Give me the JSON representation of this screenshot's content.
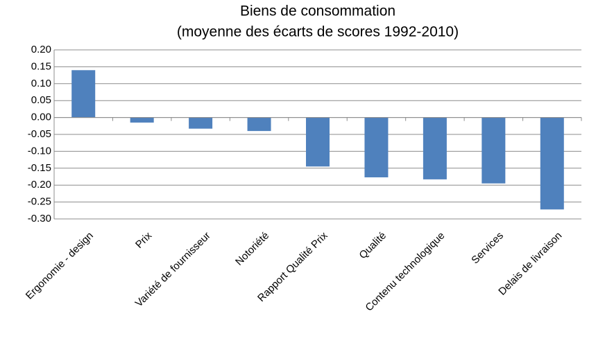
{
  "chart_data": {
    "type": "bar",
    "title": "Biens de consommation",
    "subtitle": "(moyenne des écarts de scores  1992-2010)",
    "categories": [
      "Ergonomie - design",
      "Prix",
      "Variété de fournisseur",
      "Notoriété",
      "Rapport Qualité Prix",
      "Qualité",
      "Contenu technologique",
      "Services",
      "Delais de livraison"
    ],
    "values": [
      0.14,
      -0.015,
      -0.033,
      -0.04,
      -0.145,
      -0.177,
      -0.183,
      -0.195,
      -0.272
    ],
    "color": "#4f81bd",
    "ylim": [
      -0.3,
      0.2
    ],
    "yticks": [
      {
        "value": 0.2,
        "label": "0.20"
      },
      {
        "value": 0.15,
        "label": "0.15"
      },
      {
        "value": 0.1,
        "label": "0.10"
      },
      {
        "value": 0.05,
        "label": "0.05"
      },
      {
        "value": 0,
        "label": "0.00"
      },
      {
        "value": -0.05,
        "label": "-0.05"
      },
      {
        "value": -0.1,
        "label": "-0.10"
      },
      {
        "value": -0.15,
        "label": "-0.15"
      },
      {
        "value": -0.2,
        "label": "-0.20"
      },
      {
        "value": -0.25,
        "label": "-0.25"
      },
      {
        "value": -0.3,
        "label": "-0.30"
      }
    ],
    "grid": true
  }
}
